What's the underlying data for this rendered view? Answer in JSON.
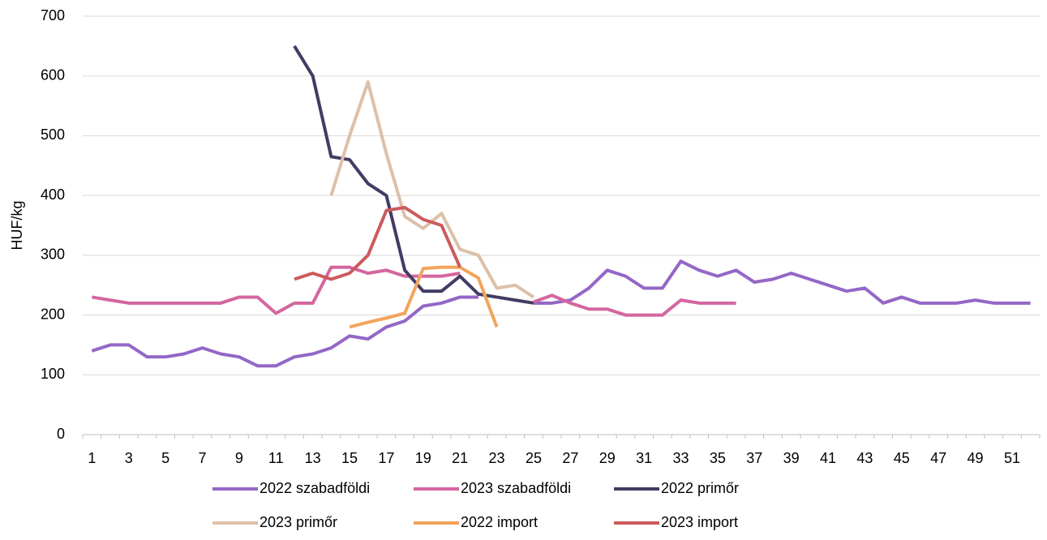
{
  "chart_data": {
    "type": "line",
    "ylabel": "HUF/kg",
    "categories": [
      1,
      null,
      3,
      null,
      5,
      null,
      7,
      null,
      9,
      null,
      11,
      null,
      13,
      null,
      15,
      null,
      17,
      null,
      19,
      null,
      21,
      null,
      23,
      null,
      25,
      null,
      27,
      null,
      29,
      null,
      31,
      null,
      33,
      null,
      35,
      null,
      37,
      null,
      39,
      null,
      41,
      null,
      43,
      null,
      45,
      null,
      47,
      null,
      49,
      null,
      51,
      null
    ],
    "ylim": [
      0,
      700
    ],
    "yticks": [
      0,
      100,
      200,
      300,
      400,
      500,
      600,
      700
    ],
    "grid": true,
    "legend": "bottom",
    "series": [
      {
        "name": "2022 szabadföldi",
        "color": "#9467c6",
        "values": [
          140,
          150,
          150,
          130,
          130,
          135,
          145,
          135,
          130,
          115,
          115,
          130,
          135,
          145,
          165,
          160,
          180,
          190,
          215,
          220,
          230,
          230,
          null,
          null,
          220,
          220,
          225,
          245,
          275,
          265,
          245,
          245,
          290,
          275,
          265,
          275,
          255,
          260,
          270,
          260,
          250,
          240,
          245,
          220,
          230,
          220,
          220,
          220,
          225,
          220,
          220,
          220
        ]
      },
      {
        "name": "2023 szabadföldi",
        "color": "#d4669f",
        "values": [
          230,
          225,
          220,
          220,
          220,
          220,
          220,
          220,
          230,
          230,
          203,
          220,
          220,
          280,
          280,
          270,
          275,
          265,
          265,
          265,
          270,
          null,
          null,
          null,
          222,
          233,
          220,
          210,
          210,
          200,
          200,
          200,
          225,
          220,
          220,
          220,
          null,
          null,
          null,
          null,
          null,
          null,
          null,
          null,
          null,
          null,
          null,
          null,
          null,
          null,
          null,
          null
        ]
      },
      {
        "name": "2022 primőr",
        "color": "#433c64",
        "values": [
          null,
          null,
          null,
          null,
          null,
          null,
          null,
          null,
          null,
          null,
          null,
          650,
          600,
          465,
          460,
          420,
          400,
          275,
          240,
          240,
          265,
          235,
          230,
          225,
          220,
          null,
          null,
          null,
          null,
          null,
          null,
          null,
          null,
          null,
          null,
          null,
          null,
          null,
          null,
          null,
          null,
          null,
          null,
          null,
          null,
          null,
          null,
          null,
          null,
          null,
          null,
          null
        ]
      },
      {
        "name": "2023 primőr",
        "color": "#dcc0a8",
        "values": [
          null,
          null,
          null,
          null,
          null,
          null,
          null,
          null,
          null,
          null,
          null,
          null,
          null,
          400,
          500,
          590,
          470,
          365,
          345,
          370,
          310,
          300,
          245,
          250,
          230,
          null,
          null,
          null,
          null,
          null,
          null,
          null,
          null,
          null,
          null,
          null,
          null,
          null,
          null,
          null,
          null,
          null,
          null,
          null,
          null,
          null,
          null,
          null,
          null,
          null,
          null,
          null
        ]
      },
      {
        "name": "2022 import",
        "color": "#f3a45c",
        "values": [
          null,
          null,
          null,
          null,
          null,
          null,
          null,
          null,
          null,
          null,
          null,
          null,
          null,
          null,
          180,
          188,
          195,
          203,
          278,
          280,
          280,
          262,
          180,
          null,
          null,
          null,
          null,
          null,
          null,
          null,
          null,
          null,
          null,
          null,
          null,
          null,
          null,
          null,
          null,
          null,
          null,
          null,
          null,
          null,
          null,
          null,
          null,
          null,
          null,
          null,
          null,
          null
        ]
      },
      {
        "name": "2023 import",
        "color": "#cc5b5c",
        "values": [
          null,
          null,
          null,
          null,
          null,
          null,
          null,
          null,
          null,
          null,
          null,
          260,
          270,
          260,
          270,
          300,
          375,
          380,
          360,
          350,
          280,
          null,
          null,
          null,
          null,
          null,
          null,
          null,
          null,
          null,
          null,
          null,
          null,
          null,
          null,
          null,
          null,
          null,
          null,
          null,
          null,
          null,
          null,
          null,
          null,
          null,
          null,
          null,
          null,
          null,
          null,
          null
        ]
      }
    ]
  }
}
